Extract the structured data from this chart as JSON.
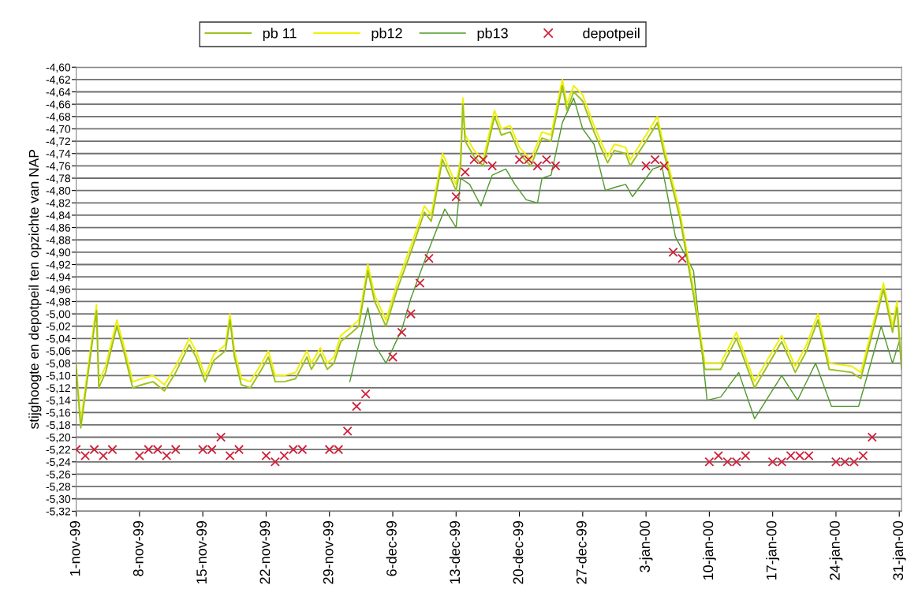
{
  "chart_data": {
    "type": "line",
    "ylabel": "stijghoogte en depotpeil ten opzichte van NAP",
    "x": [
      "1999-11-01T00:00",
      "1999-11-01T12:00",
      "1999-11-03T06:00",
      "1999-11-03T12:00",
      "1999-11-04T06:00",
      "1999-11-05T12:00",
      "1999-11-06T06:00",
      "1999-11-07T06:00",
      "1999-11-08T06:00",
      "1999-11-09T12:00",
      "1999-11-10T18:00",
      "1999-11-12T00:00",
      "1999-11-13T12:00",
      "1999-11-14T06:00",
      "1999-11-15T06:00",
      "1999-11-16T06:00",
      "1999-11-17T12:00",
      "1999-11-18T00:00",
      "1999-11-18T12:00",
      "1999-11-19T06:00",
      "1999-11-20T06:00",
      "1999-11-21T12:00",
      "1999-11-22T06:00",
      "1999-11-23T00:00",
      "1999-11-24T00:00",
      "1999-11-25T06:00",
      "1999-11-26T12:00",
      "1999-11-27T00:00",
      "1999-11-28T00:00",
      "1999-11-28T18:00",
      "1999-11-29T12:00",
      "1999-11-30T06:00",
      "1999-12-01T12:00",
      "1999-12-02T06:00",
      "1999-12-03T06:00",
      "1999-12-04T00:00",
      "1999-12-05T06:00",
      "1999-12-06T12:00",
      "1999-12-08T00:00",
      "1999-12-09T12:00",
      "1999-12-10T06:00",
      "1999-12-11T12:00",
      "1999-12-13T00:00",
      "1999-12-13T12:00",
      "1999-12-13T18:00",
      "1999-12-14T00:00",
      "1999-12-15T00:00",
      "1999-12-16T00:00",
      "1999-12-17T06:00",
      "1999-12-18T00:00",
      "1999-12-19T00:00",
      "1999-12-20T00:00",
      "1999-12-21T06:00",
      "1999-12-22T12:00",
      "1999-12-23T12:00",
      "1999-12-24T18:00",
      "1999-12-25T06:00",
      "1999-12-26T00:00",
      "1999-12-27T00:00",
      "1999-12-28T06:00",
      "1999-12-29T18:00",
      "1999-12-30T12:00",
      "1999-12-31T18:00",
      "2000-01-01T06:00",
      "2000-01-03T00:00",
      "2000-01-04T06:00",
      "2000-01-05T00:00",
      "2000-01-06T18:00",
      "2000-01-08T06:00",
      "2000-01-09T12:00",
      "2000-01-11T06:00",
      "2000-01-13T00:00",
      "2000-01-15T00:00",
      "2000-01-18T00:00",
      "2000-01-19T12:00",
      "2000-01-20T18:00",
      "2000-01-22T00:00",
      "2000-01-23T06:00",
      "2000-01-25T18:00",
      "2000-01-26T18:00",
      "2000-01-29T06:00",
      "2000-01-30T06:00",
      "2000-01-30T18:00",
      "2000-01-31T06:00"
    ],
    "series": [
      {
        "name": "pb 11",
        "color": "#9cc21e",
        "values": [
          -5.09,
          -5.185,
          -4.995,
          -5.12,
          -5.095,
          -5.02,
          -5.06,
          -5.12,
          -5.115,
          -5.11,
          -5.125,
          -5.095,
          -5.05,
          -5.07,
          -5.11,
          -5.075,
          -5.06,
          -5.01,
          -5.07,
          -5.115,
          -5.12,
          -5.09,
          -5.07,
          -5.11,
          -5.11,
          -5.105,
          -5.07,
          -5.09,
          -5.065,
          -5.09,
          -5.08,
          -5.045,
          -5.03,
          -5.02,
          -4.93,
          -4.98,
          -5.02,
          -4.96,
          -4.9,
          -4.835,
          -4.85,
          -4.75,
          -4.8,
          -4.76,
          -4.66,
          -4.72,
          -4.745,
          -4.76,
          -4.68,
          -4.71,
          -4.705,
          -4.74,
          -4.76,
          -4.715,
          -4.72,
          -4.63,
          -4.67,
          -4.64,
          -4.655,
          -4.705,
          -4.755,
          -4.735,
          -4.74,
          -4.76,
          -4.72,
          -4.69,
          -4.74,
          -4.845,
          -4.97,
          -5.09,
          -5.09,
          -5.04,
          -5.12,
          -5.045,
          -5.095,
          -5.06,
          -5.01,
          -5.09,
          -5.095,
          -5.105,
          -4.96,
          -5.03,
          -4.99,
          -5.09
        ]
      },
      {
        "name": "pb12",
        "color": "#f0f000",
        "values": [
          -5.08,
          -5.175,
          -4.985,
          -5.11,
          -5.085,
          -5.01,
          -5.05,
          -5.11,
          -5.105,
          -5.1,
          -5.115,
          -5.085,
          -5.04,
          -5.06,
          -5.1,
          -5.065,
          -5.05,
          -5.0,
          -5.06,
          -5.105,
          -5.11,
          -5.08,
          -5.06,
          -5.1,
          -5.1,
          -5.095,
          -5.06,
          -5.08,
          -5.055,
          -5.08,
          -5.07,
          -5.035,
          -5.02,
          -5.01,
          -4.92,
          -4.97,
          -5.01,
          -4.95,
          -4.89,
          -4.825,
          -4.84,
          -4.74,
          -4.79,
          -4.75,
          -4.65,
          -4.71,
          -4.735,
          -4.75,
          -4.67,
          -4.7,
          -4.695,
          -4.73,
          -4.75,
          -4.705,
          -4.71,
          -4.62,
          -4.66,
          -4.63,
          -4.645,
          -4.695,
          -4.745,
          -4.725,
          -4.73,
          -4.75,
          -4.71,
          -4.68,
          -4.73,
          -4.835,
          -4.96,
          -5.08,
          -5.08,
          -5.03,
          -5.11,
          -5.035,
          -5.085,
          -5.05,
          -5.0,
          -5.08,
          -5.085,
          -5.095,
          -4.95,
          -5.02,
          -4.98,
          -5.08
        ]
      },
      {
        "name": "pb13",
        "color": "#4f9a2a",
        "x": [
          "1999-12-01T06:00",
          "1999-12-01T18:00",
          "1999-12-03T06:00",
          "1999-12-04T00:00",
          "1999-12-05T06:00",
          "1999-12-07T00:00",
          "1999-12-08T00:00",
          "1999-12-10T00:00",
          "1999-12-11T18:00",
          "1999-12-13T00:00",
          "1999-12-13T12:00",
          "1999-12-14T12:00",
          "1999-12-15T18:00",
          "1999-12-17T00:00",
          "1999-12-18T12:00",
          "1999-12-19T12:00",
          "1999-12-20T18:00",
          "1999-12-22T00:00",
          "1999-12-22T12:00",
          "1999-12-23T12:00",
          "1999-12-24T18:00",
          "1999-12-26T00:00",
          "1999-12-27T00:00",
          "1999-12-28T06:00",
          "1999-12-29T12:00",
          "1999-12-30T12:00",
          "1999-12-31T18:00",
          "2000-01-01T12:00",
          "2000-01-03T18:00",
          "2000-01-04T18:00",
          "2000-01-06T06:00",
          "2000-01-08T06:00",
          "2000-01-09T18:00",
          "2000-01-11T06:00",
          "2000-01-13T06:00",
          "2000-01-15T00:00",
          "2000-01-18T00:00",
          "2000-01-19T18:00",
          "2000-01-21T18:00",
          "2000-01-23T12:00",
          "2000-01-26T12:00",
          "2000-01-29T00:00",
          "2000-01-30T06:00",
          "2000-01-31T00:00",
          "2000-01-31T06:00"
        ],
        "values": [
          -5.11,
          -5.08,
          -4.99,
          -5.05,
          -5.08,
          -5.025,
          -4.975,
          -4.895,
          -4.83,
          -4.86,
          -4.78,
          -4.79,
          -4.825,
          -4.775,
          -4.765,
          -4.79,
          -4.815,
          -4.82,
          -4.78,
          -4.775,
          -4.69,
          -4.65,
          -4.7,
          -4.725,
          -4.8,
          -4.795,
          -4.79,
          -4.81,
          -4.765,
          -4.76,
          -4.875,
          -4.93,
          -5.14,
          -5.135,
          -5.095,
          -5.17,
          -5.1,
          -5.14,
          -5.08,
          -5.15,
          -5.15,
          -5.02,
          -5.08,
          -5.045,
          -5.08
        ]
      },
      {
        "name": "depotpeil",
        "type": "scatter",
        "marker": "cross",
        "color": "#d0203a",
        "x": [
          "1999-11-01",
          "1999-11-02",
          "1999-11-03",
          "1999-11-04",
          "1999-11-05",
          "1999-11-08",
          "1999-11-09",
          "1999-11-10",
          "1999-11-11",
          "1999-11-12",
          "1999-11-15",
          "1999-11-16",
          "1999-11-17",
          "1999-11-18",
          "1999-11-19",
          "1999-11-22",
          "1999-11-23",
          "1999-11-24",
          "1999-11-25",
          "1999-11-26",
          "1999-11-29",
          "1999-11-30",
          "1999-12-01",
          "1999-12-02",
          "1999-12-03",
          "1999-12-06",
          "1999-12-07",
          "1999-12-08",
          "1999-12-09",
          "1999-12-10",
          "1999-12-13",
          "1999-12-14",
          "1999-12-15",
          "1999-12-16",
          "1999-12-17",
          "1999-12-20",
          "1999-12-21",
          "1999-12-22",
          "1999-12-23",
          "1999-12-24",
          "2000-01-03",
          "2000-01-04",
          "2000-01-05",
          "2000-01-06",
          "2000-01-07",
          "2000-01-10",
          "2000-01-11",
          "2000-01-12",
          "2000-01-13",
          "2000-01-14",
          "2000-01-17",
          "2000-01-18",
          "2000-01-19",
          "2000-01-20",
          "2000-01-21",
          "2000-01-24",
          "2000-01-25",
          "2000-01-26",
          "2000-01-27",
          "2000-01-28"
        ],
        "values": [
          -5.22,
          -5.23,
          -5.22,
          -5.23,
          -5.22,
          -5.23,
          -5.22,
          -5.22,
          -5.23,
          -5.22,
          -5.22,
          -5.22,
          -5.2,
          -5.23,
          -5.22,
          -5.23,
          -5.24,
          -5.23,
          -5.22,
          -5.22,
          -5.22,
          -5.22,
          -5.19,
          -5.15,
          -5.13,
          -5.07,
          -5.03,
          -5.0,
          -4.95,
          -4.91,
          -4.81,
          -4.77,
          -4.75,
          -4.75,
          -4.76,
          -4.75,
          -4.75,
          -4.76,
          -4.75,
          -4.76,
          -4.76,
          -4.75,
          -4.76,
          -4.9,
          -4.91,
          -5.24,
          -5.23,
          -5.24,
          -5.24,
          -5.23,
          -5.24,
          -5.24,
          -5.23,
          -5.23,
          -5.23,
          -5.24,
          -5.24,
          -5.24,
          -5.23,
          -5.2
        ]
      }
    ],
    "xlim": [
      "1999-11-01T00:00",
      "2000-01-31T06:00"
    ],
    "xticks": [
      {
        "value": "1999-11-01",
        "label": "1-nov-99"
      },
      {
        "value": "1999-11-08",
        "label": "8-nov-99"
      },
      {
        "value": "1999-11-15",
        "label": "15-nov-99"
      },
      {
        "value": "1999-11-22",
        "label": "22-nov-99"
      },
      {
        "value": "1999-11-29",
        "label": "29-nov-99"
      },
      {
        "value": "1999-12-06",
        "label": "6-dec-99"
      },
      {
        "value": "1999-12-13",
        "label": "13-dec-99"
      },
      {
        "value": "1999-12-20",
        "label": "20-dec-99"
      },
      {
        "value": "1999-12-27",
        "label": "27-dec-99"
      },
      {
        "value": "2000-01-03",
        "label": "3-jan-00"
      },
      {
        "value": "2000-01-10",
        "label": "10-jan-00"
      },
      {
        "value": "2000-01-17",
        "label": "17-jan-00"
      },
      {
        "value": "2000-01-24",
        "label": "24-jan-00"
      },
      {
        "value": "2000-01-31",
        "label": "31-jan-00"
      }
    ],
    "ylim": [
      -5.32,
      -4.6
    ],
    "yticks": [
      {
        "value": -4.6,
        "label": "-4,60"
      },
      {
        "value": -4.62,
        "label": "-4,62"
      },
      {
        "value": -4.64,
        "label": "-4,64"
      },
      {
        "value": -4.66,
        "label": "-4,66"
      },
      {
        "value": -4.68,
        "label": "-4,68"
      },
      {
        "value": -4.7,
        "label": "-4,70"
      },
      {
        "value": -4.72,
        "label": "-4,72"
      },
      {
        "value": -4.74,
        "label": "-4,74"
      },
      {
        "value": -4.76,
        "label": "-4,76"
      },
      {
        "value": -4.78,
        "label": "-4,78"
      },
      {
        "value": -4.8,
        "label": "-4,80"
      },
      {
        "value": -4.82,
        "label": "-4,82"
      },
      {
        "value": -4.84,
        "label": "-4,84"
      },
      {
        "value": -4.86,
        "label": "-4,86"
      },
      {
        "value": -4.88,
        "label": "-4,88"
      },
      {
        "value": -4.9,
        "label": "-4,90"
      },
      {
        "value": -4.92,
        "label": "-4,92"
      },
      {
        "value": -4.94,
        "label": "-4,94"
      },
      {
        "value": -4.96,
        "label": "-4,96"
      },
      {
        "value": -4.98,
        "label": "-4,98"
      },
      {
        "value": -5.0,
        "label": "-5,00"
      },
      {
        "value": -5.02,
        "label": "-5,02"
      },
      {
        "value": -5.04,
        "label": "-5,04"
      },
      {
        "value": -5.06,
        "label": "-5,06"
      },
      {
        "value": -5.08,
        "label": "-5,08"
      },
      {
        "value": -5.1,
        "label": "-5,10"
      },
      {
        "value": -5.12,
        "label": "-5,12"
      },
      {
        "value": -5.14,
        "label": "-5,14"
      },
      {
        "value": -5.16,
        "label": "-5,16"
      },
      {
        "value": -5.18,
        "label": "-5,18"
      },
      {
        "value": -5.2,
        "label": "-5,20"
      },
      {
        "value": -5.22,
        "label": "-5,22"
      },
      {
        "value": -5.24,
        "label": "-5,24"
      },
      {
        "value": -5.26,
        "label": "-5,26"
      },
      {
        "value": -5.28,
        "label": "-5,28"
      },
      {
        "value": -5.3,
        "label": "-5,30"
      },
      {
        "value": -5.32,
        "label": "-5,32"
      }
    ],
    "grid": "y",
    "legend": "top",
    "marker": "none",
    "line_style": "solid"
  }
}
